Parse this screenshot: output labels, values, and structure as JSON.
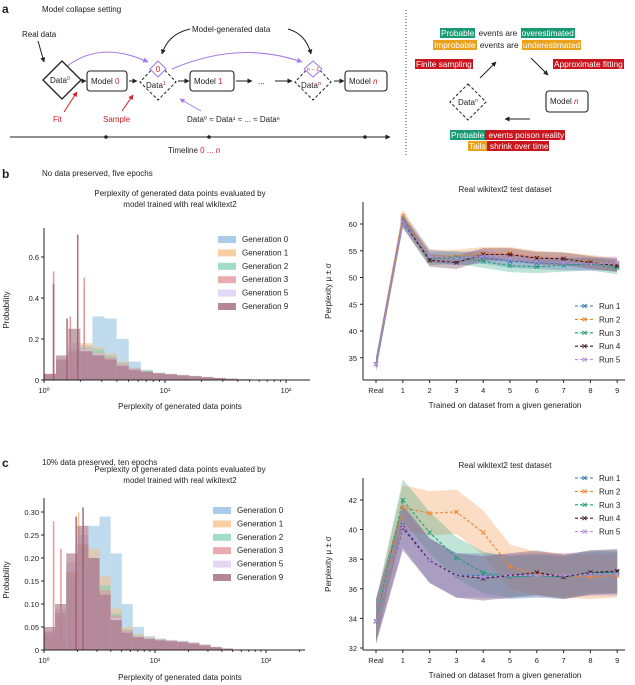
{
  "colors": {
    "red": "#d0202a",
    "purple": "#a77be8",
    "black": "#222222",
    "green": "#1a9a72",
    "orange": "#eaa21c",
    "highlight_red": "#c8151e"
  },
  "panel_a": {
    "letter": "a",
    "title": "Model collapse setting",
    "real_data": "Real data",
    "model_generated": "Model-generated data",
    "data_label": "Data",
    "sup0": "0",
    "sup1": "1",
    "supn": "n",
    "model_label": "Model",
    "model0_idx": "0",
    "model1_idx": "1",
    "modeln_idx": "n",
    "ellipsis": "...",
    "inner_0": "0",
    "inner_n1": "n − 1",
    "fit": "Fit",
    "sample": "Sample",
    "approx_eq": "Data⁰ ≈ Data¹ ≈ ... ≈ Dataⁿ",
    "timeline_label": "Timeline",
    "timeline_start": "0",
    "timeline_sep": " ... ",
    "timeline_end": "n",
    "cycle": {
      "line1": [
        {
          "text": "Probable",
          "bg": "green"
        },
        {
          "text": " events are ",
          "bg": ""
        },
        {
          "text": "overestimated",
          "bg": "green"
        }
      ],
      "line2": [
        {
          "text": "Improbable",
          "bg": "orange"
        },
        {
          "text": " events are ",
          "bg": ""
        },
        {
          "text": "underestimated",
          "bg": "orange"
        }
      ],
      "finite_sampling": "Finite sampling",
      "approximate_fitting": "Approximate fitting",
      "data_label": "Data",
      "data_sup": "n",
      "model_label": "Model",
      "model_idx": "n",
      "line3": [
        {
          "text": "Probable",
          "bg": "green"
        },
        {
          "text": " events poison reality",
          "bg": "red"
        }
      ],
      "line4": [
        {
          "text": "Tails",
          "bg": "orange"
        },
        {
          "text": " shrink over time",
          "bg": "red"
        }
      ]
    }
  },
  "panel_b": {
    "letter": "b",
    "title": "No data preserved, five epochs"
  },
  "panel_c": {
    "letter": "c",
    "title": "10% data preserved, ten epochs"
  },
  "chart_data": [
    {
      "type": "bar",
      "title_lines": [
        "Perplexity of generated data points evaluated by",
        "model trained with real wikitext2"
      ],
      "xlabel": "Perplexity of generated data points",
      "ylabel": "Probability",
      "xscale": "log",
      "xlim": [
        1,
        150
      ],
      "ylim": [
        0,
        0.72
      ],
      "xtick_labels": [
        "10⁰",
        "10¹",
        "10²"
      ],
      "yticks": [
        0,
        0.2,
        0.4,
        0.6
      ],
      "ytick_labels": [
        "0",
        "0.2",
        "0.4",
        "0.6"
      ],
      "legend": "top-right",
      "bin_centers": [
        1.12,
        1.41,
        1.78,
        2.24,
        2.82,
        3.55,
        4.47,
        5.62,
        7.08,
        8.91,
        11.2,
        14.1,
        17.8,
        22.4,
        28.2,
        35.5,
        44.7,
        56.2,
        70.8
      ],
      "series": [
        {
          "name": "Generation 0",
          "color": "#8dbbe0",
          "values": [
            0,
            0.01,
            0.06,
            0.17,
            0.31,
            0.3,
            0.2,
            0.09,
            0.05,
            0.035,
            0.028,
            0.022,
            0.018,
            0.014,
            0.01,
            0.006,
            0.003,
            0.001,
            0
          ],
          "spikes": []
        },
        {
          "name": "Generation 1",
          "color": "#f5bf85",
          "values": [
            0.02,
            0.1,
            0.15,
            0.18,
            0.16,
            0.13,
            0.09,
            0.06,
            0.045,
            0.035,
            0.03,
            0.025,
            0.02,
            0.015,
            0.01,
            0.006,
            0.003,
            0.001,
            0
          ],
          "spikes": [
            [
              2.15,
              0.45
            ]
          ]
        },
        {
          "name": "Generation 2",
          "color": "#86d1b3",
          "values": [
            0.02,
            0.09,
            0.14,
            0.16,
            0.15,
            0.12,
            0.085,
            0.06,
            0.045,
            0.035,
            0.03,
            0.025,
            0.02,
            0.015,
            0.01,
            0.006,
            0.003,
            0.001,
            0
          ],
          "spikes": []
        },
        {
          "name": "Generation 3",
          "color": "#e28f94",
          "values": [
            0.03,
            0.1,
            0.14,
            0.15,
            0.13,
            0.11,
            0.08,
            0.055,
            0.04,
            0.033,
            0.028,
            0.023,
            0.019,
            0.014,
            0.01,
            0.006,
            0.003,
            0.001,
            0
          ],
          "spikes": [
            [
              1.2,
              0.53
            ],
            [
              2.15,
              0.5
            ],
            [
              1.65,
              0.31
            ]
          ]
        },
        {
          "name": "Generation 5",
          "color": "#d8c9f0",
          "values": [
            0.02,
            0.1,
            0.18,
            0.15,
            0.13,
            0.1,
            0.075,
            0.055,
            0.04,
            0.032,
            0.027,
            0.022,
            0.018,
            0.014,
            0.01,
            0.006,
            0.003,
            0.001,
            0
          ],
          "spikes": []
        },
        {
          "name": "Generation 9",
          "color": "#9a6070",
          "values": [
            0.03,
            0.12,
            0.25,
            0.14,
            0.12,
            0.1,
            0.07,
            0.05,
            0.04,
            0.032,
            0.027,
            0.022,
            0.018,
            0.014,
            0.01,
            0.006,
            0.003,
            0.001,
            0
          ],
          "spikes": [
            [
              1.9,
              0.71
            ],
            [
              1.55,
              0.3
            ],
            [
              1.2,
              0.47
            ]
          ]
        }
      ]
    },
    {
      "type": "line",
      "title": "Real wikitext2 test dataset",
      "xlabel": "Trained on dataset from a given generation",
      "ylabel": "Perplexity μ ± σ",
      "categories": [
        "Real",
        "1",
        "2",
        "3",
        "4",
        "5",
        "6",
        "7",
        "8",
        "9"
      ],
      "yticks": [
        35,
        40,
        45,
        50,
        55,
        60
      ],
      "ylim": [
        31,
        64
      ],
      "legend": "right",
      "series": [
        {
          "name": "Run 1",
          "color": "#3b78b8",
          "values": [
            33.8,
            61,
            54,
            53.5,
            53.8,
            53,
            52.8,
            52.5,
            52.5,
            52.5
          ],
          "std": 1.2
        },
        {
          "name": "Run 2",
          "color": "#f0852d",
          "values": [
            33.8,
            61.5,
            54,
            54,
            54.5,
            54.5,
            53.8,
            53.5,
            53,
            52.5
          ],
          "std": 1.2
        },
        {
          "name": "Run 3",
          "color": "#1f9e77",
          "values": [
            33.8,
            60.5,
            53.5,
            53.8,
            53,
            52.2,
            52,
            52.3,
            52.5,
            51.8
          ],
          "std": 1.2
        },
        {
          "name": "Run 4",
          "color": "#4a1526",
          "values": [
            33.8,
            60.5,
            53.2,
            52.8,
            54.3,
            54.3,
            53.6,
            53.5,
            52.8,
            52.2
          ],
          "std": 1.2
        },
        {
          "name": "Run 5",
          "color": "#b592e6",
          "values": [
            33.8,
            60.5,
            54,
            53.5,
            54,
            53.5,
            53,
            52.7,
            52.5,
            52.8
          ],
          "std": 1.2
        }
      ]
    },
    {
      "type": "bar",
      "title_lines": [
        "Perplexity of generated data points evaluated by",
        "model trained with real wikitext2"
      ],
      "xlabel": "Perplexity of generated data points",
      "ylabel": "Probability",
      "xscale": "log",
      "xlim": [
        1,
        200
      ],
      "ylim": [
        0,
        0.32
      ],
      "xtick_labels": [
        "10⁰",
        "10¹",
        "10²"
      ],
      "yticks": [
        0,
        0.05,
        0.1,
        0.15,
        0.2,
        0.25,
        0.3
      ],
      "ytick_labels": [
        "0",
        "0.05",
        "0.10",
        "0.15",
        "0.20",
        "0.25",
        "0.30"
      ],
      "legend": "top-right",
      "bin_centers": [
        1.12,
        1.41,
        1.78,
        2.24,
        2.82,
        3.55,
        4.47,
        5.62,
        7.08,
        8.91,
        11.2,
        14.1,
        17.8,
        22.4,
        28.2,
        35.5,
        44.7,
        56.2,
        70.8
      ],
      "series": [
        {
          "name": "Generation 0",
          "color": "#8dbbe0",
          "values": [
            0,
            0.01,
            0.07,
            0.17,
            0.27,
            0.29,
            0.21,
            0.1,
            0.05,
            0.03,
            0.025,
            0.022,
            0.02,
            0.017,
            0.012,
            0.007,
            0.003,
            0.001,
            0
          ],
          "spikes": []
        },
        {
          "name": "Generation 1",
          "color": "#f5bf85",
          "values": [
            0.03,
            0.08,
            0.17,
            0.23,
            0.22,
            0.16,
            0.09,
            0.05,
            0.035,
            0.028,
            0.024,
            0.021,
            0.019,
            0.016,
            0.012,
            0.007,
            0.003,
            0.001,
            0
          ],
          "spikes": [
            [
              2.05,
              0.3
            ]
          ]
        },
        {
          "name": "Generation 2",
          "color": "#86d1b3",
          "values": [
            0.03,
            0.07,
            0.16,
            0.22,
            0.2,
            0.14,
            0.08,
            0.045,
            0.032,
            0.026,
            0.023,
            0.02,
            0.018,
            0.015,
            0.011,
            0.006,
            0.003,
            0.001,
            0
          ],
          "spikes": []
        },
        {
          "name": "Generation 3",
          "color": "#e28f94",
          "values": [
            0.04,
            0.08,
            0.17,
            0.23,
            0.2,
            0.13,
            0.075,
            0.043,
            0.03,
            0.025,
            0.022,
            0.02,
            0.018,
            0.015,
            0.011,
            0.006,
            0.003,
            0.001,
            0
          ],
          "spikes": [
            [
              1.22,
              0.28
            ],
            [
              1.42,
              0.22
            ]
          ]
        },
        {
          "name": "Generation 5",
          "color": "#d8c9f0",
          "values": [
            0.04,
            0.09,
            0.19,
            0.25,
            0.2,
            0.12,
            0.07,
            0.04,
            0.03,
            0.025,
            0.022,
            0.02,
            0.018,
            0.015,
            0.011,
            0.006,
            0.003,
            0.001,
            0
          ],
          "spikes": []
        },
        {
          "name": "Generation 9",
          "color": "#9a6070",
          "values": [
            0.05,
            0.1,
            0.21,
            0.27,
            0.2,
            0.12,
            0.065,
            0.038,
            0.028,
            0.024,
            0.021,
            0.019,
            0.017,
            0.014,
            0.01,
            0.006,
            0.003,
            0.001,
            0
          ],
          "spikes": [
            [
              2.25,
              0.31
            ],
            [
              1.95,
              0.29
            ]
          ]
        }
      ]
    },
    {
      "type": "line",
      "title": "Real wikitext2 test dataset",
      "xlabel": "Trained on dataset from a given generation",
      "ylabel": "Perplexity μ ± σ",
      "categories": [
        "Real",
        "1",
        "2",
        "3",
        "4",
        "5",
        "6",
        "7",
        "8",
        "9"
      ],
      "yticks": [
        32,
        34,
        36,
        38,
        40,
        42
      ],
      "ylim": [
        32,
        43.5
      ],
      "legend": "top-right",
      "series": [
        {
          "name": "Run 1",
          "color": "#3b78b8",
          "values": [
            33.8,
            40.3,
            37.9,
            36.9,
            36.9,
            36.8,
            36.9,
            36.8,
            37.1,
            37.1
          ],
          "std": 1.5
        },
        {
          "name": "Run 2",
          "color": "#f0852d",
          "values": [
            33.8,
            41.5,
            41.1,
            41.2,
            39.8,
            37.5,
            37,
            36.9,
            36.8,
            36.9
          ],
          "std": 1.5
        },
        {
          "name": "Run 3",
          "color": "#1f9e77",
          "values": [
            33.8,
            42,
            39.8,
            38.1,
            37.1,
            36.8,
            36.9,
            36.8,
            37.1,
            37.1
          ],
          "std": 1.4
        },
        {
          "name": "Run 4",
          "color": "#4a1526",
          "values": [
            33.8,
            40.1,
            37.9,
            36.9,
            36.7,
            36.9,
            37.1,
            36.8,
            37.1,
            37.2
          ],
          "std": 1.5
        },
        {
          "name": "Run 5",
          "color": "#b592e6",
          "values": [
            33.8,
            40.2,
            37.9,
            36.9,
            36.8,
            36.9,
            36.9,
            36.9,
            37.0,
            37.0
          ],
          "std": 1.5
        }
      ]
    }
  ]
}
